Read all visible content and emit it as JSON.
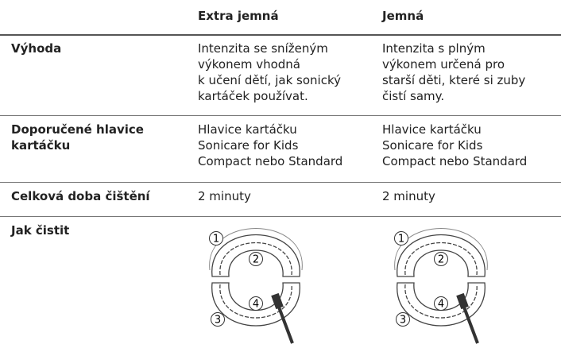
{
  "table": {
    "columns": [
      "Extra jemná",
      "Jemná"
    ],
    "rows": [
      {
        "label": [
          "Výhoda"
        ],
        "cells": [
          [
            "Intenzita se sníženým",
            "výkonem vhodná",
            "k učení dětí, jak sonický",
            "kartáček používat."
          ],
          [
            "Intenzita s plným",
            "výkonem určená pro",
            "starší děti, které si zuby",
            "čistí samy."
          ]
        ]
      },
      {
        "label": [
          "Doporučené hlavice",
          "kartáčku"
        ],
        "cells": [
          [
            "Hlavice kartáčku",
            "Sonicare for Kids",
            "Compact nebo Standard"
          ],
          [
            "Hlavice kartáčku",
            "Sonicare for Kids",
            "Compact nebo Standard"
          ]
        ]
      },
      {
        "label": [
          "Celková doba čištění"
        ],
        "cells": [
          [
            "2 minuty"
          ],
          [
            "2 minuty"
          ]
        ]
      },
      {
        "label": [
          "Jak čistit"
        ],
        "steps": [
          "1",
          "2",
          "3",
          "4"
        ]
      }
    ]
  }
}
